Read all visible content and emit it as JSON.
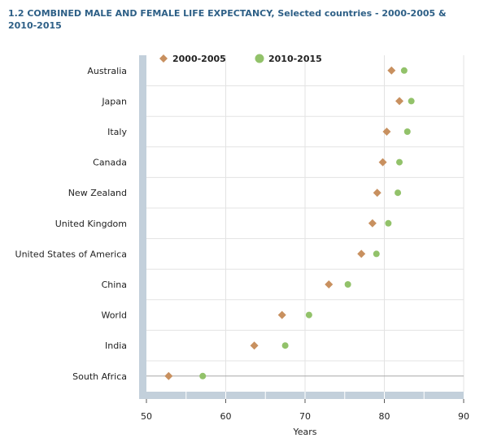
{
  "chart_data": {
    "type": "scatter",
    "title": "1.2 COMBINED MALE AND FEMALE LIFE EXPECTANCY, Selected countries - 2000-2005 & 2010-2015",
    "xlabel": "Years",
    "ylabel": "",
    "xlim": [
      50,
      90
    ],
    "xticks": [
      50,
      60,
      70,
      80,
      90
    ],
    "grid": true,
    "legend_position": "top-left",
    "categories": [
      "Australia",
      "Japan",
      "Italy",
      "Canada",
      "New Zealand",
      "United Kingdom",
      "United States of America",
      "China",
      "World",
      "India",
      "South Africa"
    ],
    "series": [
      {
        "name": "2000-2005",
        "marker": "diamond",
        "color": "#c8905f",
        "values": [
          80.9,
          81.9,
          80.3,
          79.8,
          79.1,
          78.5,
          77.1,
          73.0,
          67.1,
          63.6,
          52.8
        ]
      },
      {
        "name": "2010-2015",
        "marker": "circle",
        "color": "#92c26a",
        "values": [
          82.5,
          83.4,
          82.9,
          81.9,
          81.7,
          80.5,
          79.0,
          75.4,
          70.5,
          67.5,
          57.1
        ]
      }
    ]
  }
}
